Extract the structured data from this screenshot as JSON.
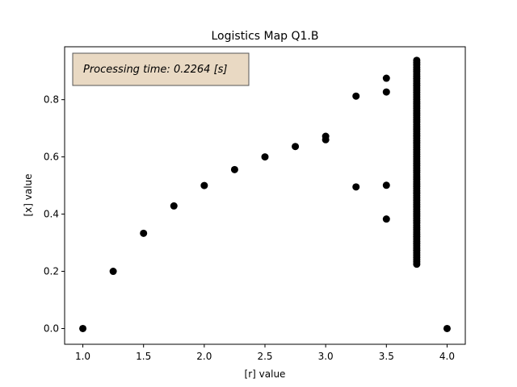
{
  "chart_data": {
    "type": "scatter",
    "title": "Logistics Map Q1.B",
    "xlabel": "[r] value",
    "ylabel": "[x] value",
    "xlim": [
      0.85,
      4.15
    ],
    "ylim": [
      -0.055,
      0.985
    ],
    "xticks": [
      1.0,
      1.5,
      2.0,
      2.5,
      3.0,
      3.5,
      4.0
    ],
    "xtick_labels": [
      "1.0",
      "1.5",
      "2.0",
      "2.5",
      "3.0",
      "3.5",
      "4.0"
    ],
    "yticks": [
      0.0,
      0.2,
      0.4,
      0.6,
      0.8
    ],
    "ytick_labels": [
      "0.0",
      "0.2",
      "0.4",
      "0.6",
      "0.8"
    ],
    "grid": false,
    "marker_color": "#000000",
    "annotation": {
      "text": "Processing time: 0.2264 [s]",
      "background": "#e9d9c3",
      "border": "#555555",
      "placement": "top-left"
    },
    "points": [
      {
        "x": 1.0,
        "y": 0.0
      },
      {
        "x": 1.25,
        "y": 0.2
      },
      {
        "x": 1.5,
        "y": 0.333
      },
      {
        "x": 1.75,
        "y": 0.4286
      },
      {
        "x": 2.0,
        "y": 0.5
      },
      {
        "x": 2.25,
        "y": 0.5556
      },
      {
        "x": 2.5,
        "y": 0.6
      },
      {
        "x": 2.75,
        "y": 0.6364
      },
      {
        "x": 3.0,
        "y": 0.66
      },
      {
        "x": 3.0,
        "y": 0.672
      },
      {
        "x": 3.25,
        "y": 0.495
      },
      {
        "x": 3.25,
        "y": 0.8124
      },
      {
        "x": 3.5,
        "y": 0.3828
      },
      {
        "x": 3.5,
        "y": 0.5009
      },
      {
        "x": 3.5,
        "y": 0.8269
      },
      {
        "x": 3.5,
        "y": 0.875
      },
      {
        "x": 4.0,
        "y": 0.0
      }
    ],
    "dense_column": {
      "x": 3.75,
      "y_min": 0.225,
      "y_max": 0.9375,
      "count": 90
    }
  }
}
